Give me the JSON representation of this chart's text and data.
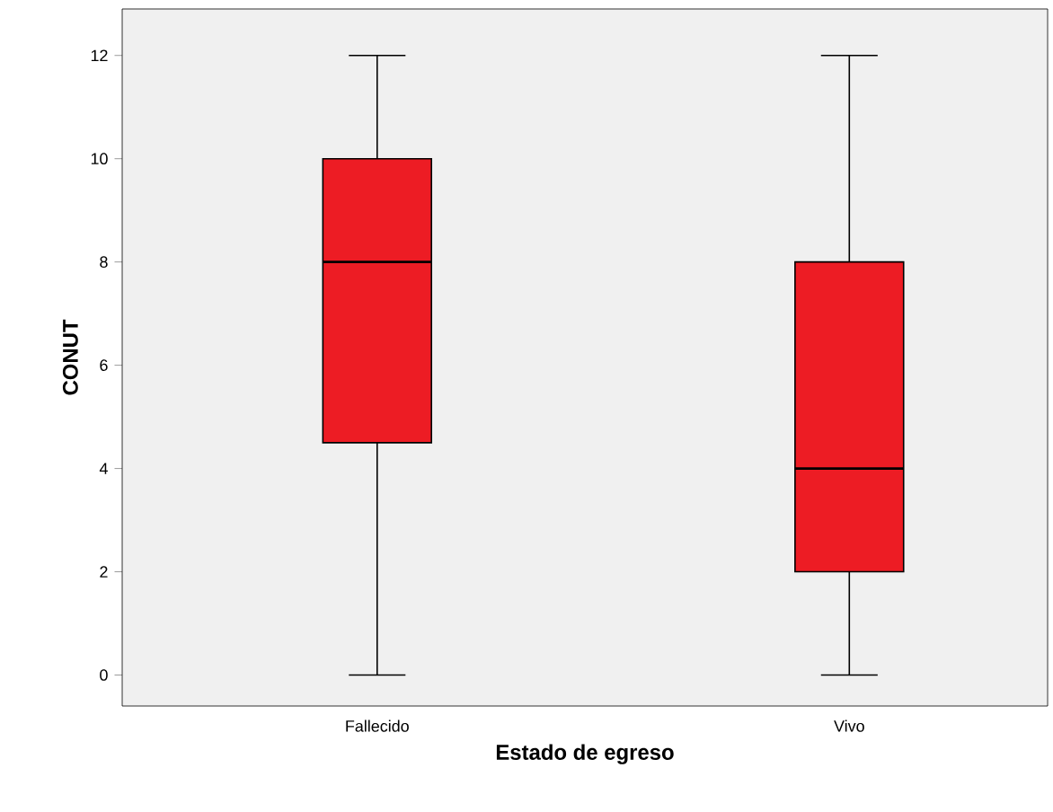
{
  "chart_data": {
    "type": "box",
    "xlabel": "Estado de egreso",
    "ylabel": "CONUT",
    "categories": [
      "Fallecido",
      "Vivo"
    ],
    "color": "#ed1c24",
    "boxes": [
      {
        "low": 0,
        "q1": 4.5,
        "median": 8,
        "q3": 10,
        "high": 12
      },
      {
        "low": 0,
        "q1": 2,
        "median": 4,
        "q3": 8,
        "high": 12
      }
    ],
    "ylim": [
      -0.6,
      12.9
    ],
    "yticks": [
      0,
      2,
      4,
      6,
      8,
      10,
      12
    ]
  }
}
